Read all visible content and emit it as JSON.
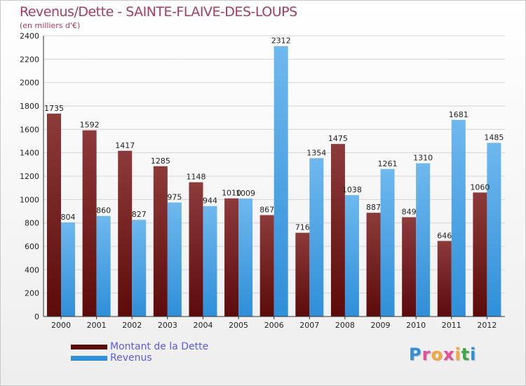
{
  "header": {
    "title": "Revenus/Dette - SAINTE-FLAIVE-DES-LOUPS",
    "subtitle": "(en milliers d'€)"
  },
  "colors": {
    "dette_dark": "#5c0a0a",
    "dette_light": "#8c3a3a",
    "revenus_dark": "#2f8fd8",
    "revenus_light": "#6fb8ee",
    "title": "#b03a5b",
    "legend_text": "#5a5aff"
  },
  "legend": {
    "items": [
      {
        "label": "Montant de la Dette"
      },
      {
        "label": "Revenus"
      }
    ]
  },
  "logo": {
    "text": "Proxiti",
    "letter_colors": [
      "#2f8fd8",
      "#e84d9a",
      "#f2a93b",
      "#e84d9a",
      "#f2a93b",
      "#3fa84a",
      "#2f8fd8"
    ]
  },
  "chart_data": {
    "type": "bar",
    "title": "Revenus/Dette - SAINTE-FLAIVE-DES-LOUPS",
    "subtitle": "(en milliers d'€)",
    "categories": [
      "2000",
      "2001",
      "2002",
      "2003",
      "2004",
      "2005",
      "2006",
      "2007",
      "2008",
      "2009",
      "2010",
      "2011",
      "2012"
    ],
    "series": [
      {
        "name": "Montant de la Dette",
        "values": [
          1735,
          1592,
          1417,
          1285,
          1148,
          1010,
          867,
          716,
          1475,
          887,
          849,
          646,
          1060
        ]
      },
      {
        "name": "Revenus",
        "values": [
          804,
          860,
          827,
          975,
          944,
          1009,
          2312,
          1354,
          1038,
          1261,
          1310,
          1681,
          1485
        ]
      }
    ],
    "ylim": [
      0,
      2400
    ],
    "yticks": [
      "0",
      "200",
      "400",
      "600",
      "800",
      "1000",
      "1200",
      "1400",
      "1600",
      "1800",
      "2000",
      "2200",
      "2400"
    ],
    "grid": true,
    "legend_position": "bottom-left"
  }
}
